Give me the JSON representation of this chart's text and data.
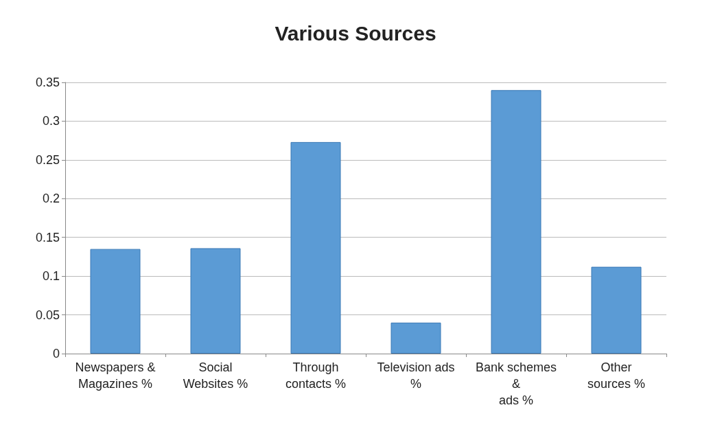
{
  "chart_data": {
    "type": "bar",
    "title": "Various Sources",
    "categories": [
      "Newspapers &\nMagazines %",
      "Social\nWebsites %",
      "Through\ncontacts %",
      "Television ads\n%",
      "Bank schemes\n&\nads %",
      "Other\nsources %"
    ],
    "values": [
      0.135,
      0.136,
      0.273,
      0.04,
      0.34,
      0.112
    ],
    "color": "#5b9bd5",
    "ylim": [
      0,
      0.35
    ],
    "yticks": [
      0,
      0.05,
      0.1,
      0.15,
      0.2,
      0.25,
      0.3,
      0.35
    ],
    "grid": "y"
  }
}
